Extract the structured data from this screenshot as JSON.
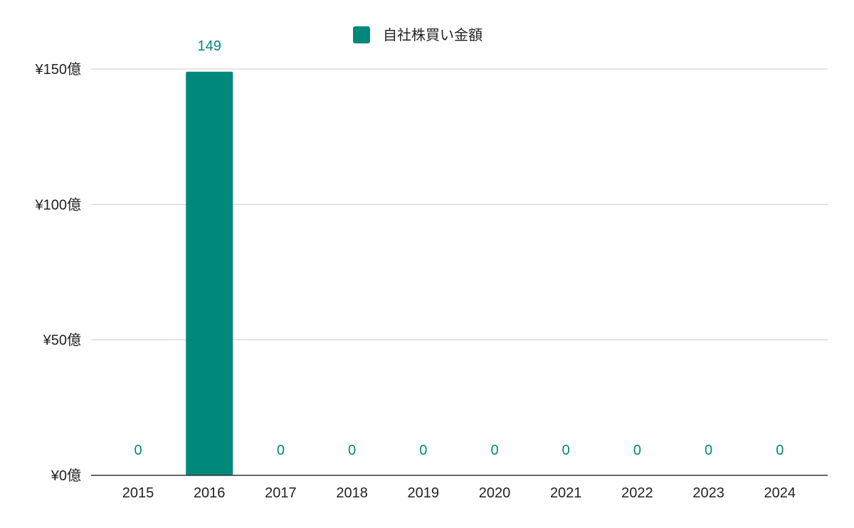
{
  "chart_data": {
    "type": "bar",
    "categories": [
      "2015",
      "2016",
      "2017",
      "2018",
      "2019",
      "2020",
      "2021",
      "2022",
      "2023",
      "2024"
    ],
    "series": [
      {
        "name": "自社株買い金額",
        "values": [
          0,
          149,
          0,
          0,
          0,
          0,
          0,
          0,
          0,
          0
        ],
        "data_labels": [
          "0",
          "149",
          "0",
          "0",
          "0",
          "0",
          "0",
          "0",
          "0",
          "0"
        ],
        "color": "#00897b"
      }
    ],
    "ylim": [
      0,
      150
    ],
    "yticks": [
      {
        "value": 0,
        "label": "¥0億"
      },
      {
        "value": 50,
        "label": "¥50億"
      },
      {
        "value": 100,
        "label": "¥100億"
      },
      {
        "value": 150,
        "label": "¥150億"
      }
    ],
    "grid": true,
    "legend_position": "top-center"
  }
}
